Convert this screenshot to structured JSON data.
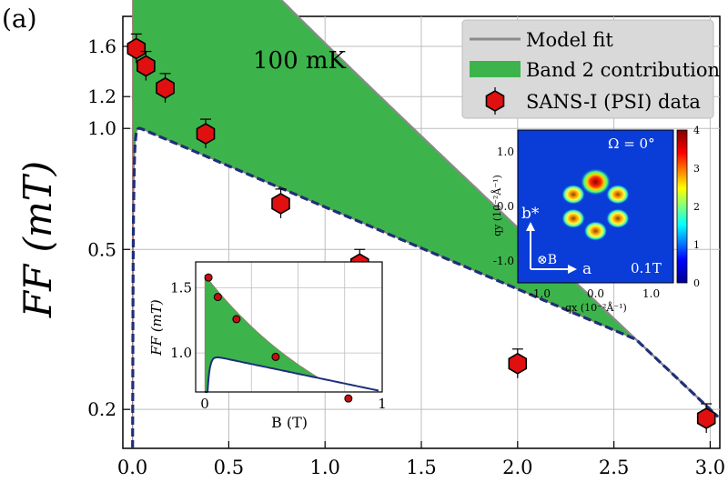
{
  "panel_label": "(a)",
  "colors": {
    "fit": "#8a8a8a",
    "band": "#3cb44b",
    "band_edge": "#a07070",
    "blue": "#1f2f7a",
    "data_fill": "#e01010",
    "data_edge": "#000000",
    "grid": "#bdbdbd",
    "legend_bg": "#d9d9d9"
  },
  "chart_data": [
    {
      "type": "scatter",
      "title": "",
      "annotation": "100 mK",
      "xlabel": "",
      "ylabel": "FF (mT)",
      "yscale": "log",
      "xlim": [
        -0.05,
        3.05
      ],
      "ylim": [
        0.16,
        1.9
      ],
      "grid": true,
      "legend_position": "top-right",
      "x_ticks": [
        "0.0",
        "0.5",
        "1.0",
        "1.5",
        "2.0",
        "2.5",
        "3.0"
      ],
      "x_tick_values": [
        0.0,
        0.5,
        1.0,
        1.5,
        2.0,
        2.5,
        3.0
      ],
      "y_ticks": [
        "1.6",
        "1.2",
        "1.0",
        "0.5",
        "0.2"
      ],
      "y_tick_values": [
        1.6,
        1.2,
        1.0,
        0.5,
        0.2
      ],
      "legend": [
        "Model fit",
        "Band 2 contribution",
        "SANS-I (PSI) data"
      ],
      "series": [
        {
          "name": "SANS-I (PSI) data",
          "x": [
            0.02,
            0.07,
            0.17,
            0.38,
            0.77,
            1.18,
            2.0,
            2.98
          ],
          "y": [
            1.58,
            1.43,
            1.26,
            0.97,
            0.65,
            0.46,
            0.26,
            0.19
          ]
        }
      ]
    },
    {
      "type": "scatter",
      "title": "",
      "xlabel": "B (T)",
      "ylabel": "FF (mT)",
      "xlim": [
        0,
        1
      ],
      "ylim": [
        0.7,
        1.7
      ],
      "x_ticks": [
        "0",
        "1"
      ],
      "y_ticks": [
        "1.5",
        "1.0"
      ],
      "series": [
        {
          "name": "SANS-I (PSI) data",
          "x": [
            0.02,
            0.07,
            0.17,
            0.38,
            0.77
          ],
          "y": [
            1.58,
            1.43,
            1.26,
            0.97,
            0.65
          ]
        }
      ]
    },
    {
      "type": "heatmap",
      "title": "",
      "annotation": "Ω = 0°",
      "field_label": "0.1T",
      "xlabel": "qx (10⁻²Å⁻¹)",
      "ylabel": "qy (10⁻²Å⁻¹)",
      "axis_a": "a",
      "axis_b": "b*",
      "field_symbol": "⊗B",
      "xlim": [
        -1.4,
        1.4
      ],
      "ylim": [
        -1.4,
        1.4
      ],
      "x_ticks": [
        "-1.0",
        "0.0",
        "1.0"
      ],
      "y_ticks": [
        "1.0",
        "0.0",
        "-1.0"
      ],
      "colorbar_ticks": [
        "4",
        "3",
        "2",
        "1",
        "0"
      ],
      "colorbar_range": [
        0,
        4
      ],
      "peaks": [
        {
          "qx": 0.0,
          "qy": 0.45,
          "intensity": 4.0
        },
        {
          "qx": 0.4,
          "qy": 0.22,
          "intensity": 2.6
        },
        {
          "qx": 0.4,
          "qy": -0.22,
          "intensity": 2.6
        },
        {
          "qx": 0.0,
          "qy": -0.45,
          "intensity": 2.6
        },
        {
          "qx": -0.4,
          "qy": -0.22,
          "intensity": 2.6
        },
        {
          "qx": -0.4,
          "qy": 0.22,
          "intensity": 2.6
        }
      ]
    }
  ]
}
